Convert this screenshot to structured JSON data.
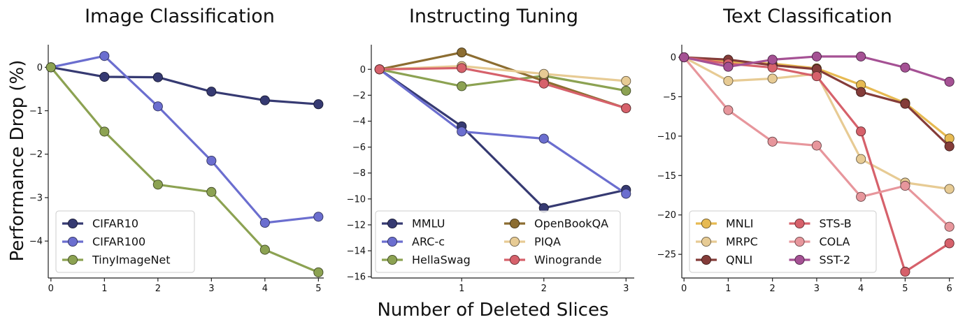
{
  "figure": {
    "ylabel": "Performance Drop (%)",
    "xlabel": "Number of Deleted Slices"
  },
  "chart_data": [
    {
      "type": "line",
      "title": "Image Classification",
      "x": [
        0,
        1,
        2,
        3,
        4,
        5
      ],
      "xticks": [
        "0",
        "1",
        "2",
        "3",
        "4",
        "5"
      ],
      "yticks": [
        "0",
        "−1",
        "−2",
        "−3",
        "−4"
      ],
      "ytick_values": [
        0,
        -1,
        -2,
        -3,
        -4
      ],
      "xlim": [
        -0.05,
        5.1
      ],
      "ylim": [
        -4.85,
        0.52
      ],
      "legend_position": "lower-left",
      "legend_columns": 1,
      "series": [
        {
          "name": "CIFAR10",
          "color": "#363a72",
          "x": [
            0,
            1,
            2,
            3,
            4,
            5
          ],
          "values": [
            0,
            -0.22,
            -0.23,
            -0.56,
            -0.76,
            -0.85
          ]
        },
        {
          "name": "CIFAR100",
          "color": "#6b6ecf",
          "x": [
            0,
            1,
            2,
            3,
            4,
            5
          ],
          "values": [
            0,
            0.26,
            -0.9,
            -2.15,
            -3.58,
            -3.44
          ]
        },
        {
          "name": "TinyImageNet",
          "color": "#8ca252",
          "x": [
            0,
            1,
            2,
            3,
            4,
            5
          ],
          "values": [
            0,
            -1.48,
            -2.7,
            -2.87,
            -4.2,
            -4.72
          ]
        }
      ]
    },
    {
      "type": "line",
      "title": "Instructing Tuning",
      "x": [
        0,
        1,
        2,
        3
      ],
      "xticks": [
        "1",
        "2",
        "3"
      ],
      "xtick_values": [
        1,
        2,
        3
      ],
      "yticks": [
        "0",
        "−2",
        "−4",
        "−6",
        "−8",
        "−10",
        "−12",
        "−14",
        "−16"
      ],
      "ytick_values": [
        0,
        -2,
        -4,
        -6,
        -8,
        -10,
        -12,
        -14,
        -16
      ],
      "xlim": [
        -0.1,
        3.1
      ],
      "ylim": [
        -16.1,
        1.9
      ],
      "legend_position": "lower-center",
      "legend_columns": 2,
      "series": [
        {
          "name": "MMLU",
          "color": "#363a72",
          "x": [
            0,
            1,
            2,
            3
          ],
          "values": [
            0,
            -4.4,
            -10.7,
            -9.3
          ]
        },
        {
          "name": "ARC-c",
          "color": "#6b6ecf",
          "x": [
            0,
            1,
            2,
            3
          ],
          "values": [
            0,
            -4.8,
            -5.35,
            -9.6
          ]
        },
        {
          "name": "HellaSwag",
          "color": "#8ca252",
          "x": [
            0,
            1,
            2,
            3
          ],
          "values": [
            0,
            -1.3,
            -0.5,
            -1.65
          ]
        },
        {
          "name": "OpenBookQA",
          "color": "#8c6d31",
          "x": [
            0,
            1,
            2,
            3
          ],
          "values": [
            0,
            1.3,
            -0.9,
            -3.0
          ]
        },
        {
          "name": "PIQA",
          "color": "#e7cb94",
          "x": [
            0,
            1,
            2,
            3
          ],
          "values": [
            0,
            0.25,
            -0.35,
            -0.9
          ]
        },
        {
          "name": "Winogrande",
          "color": "#d6616b",
          "x": [
            0,
            1,
            2,
            3
          ],
          "values": [
            0,
            0.1,
            -1.1,
            -3.0
          ]
        }
      ]
    },
    {
      "type": "line",
      "title": "Text Classification",
      "x": [
        0,
        1,
        2,
        3,
        4,
        5,
        6
      ],
      "xticks": [
        "0",
        "1",
        "2",
        "3",
        "4",
        "5",
        "6"
      ],
      "yticks": [
        "0",
        "−5",
        "−10",
        "−15",
        "−20",
        "−25"
      ],
      "ytick_values": [
        0,
        -5,
        -10,
        -15,
        -20,
        -25
      ],
      "xlim": [
        -0.05,
        6.1
      ],
      "ylim": [
        -28.0,
        1.6
      ],
      "legend_position": "lower-center",
      "legend_columns": 2,
      "series": [
        {
          "name": "MNLI",
          "color": "#e7ba52",
          "x": [
            0,
            1,
            2,
            3,
            4,
            5,
            6
          ],
          "values": [
            0,
            -0.6,
            -0.8,
            -1.4,
            -3.5,
            -5.8,
            -10.3
          ]
        },
        {
          "name": "MRPC",
          "color": "#e7cb94",
          "x": [
            0,
            1,
            2,
            3,
            4,
            5,
            6
          ],
          "values": [
            0,
            -3.0,
            -2.7,
            -2.1,
            -12.9,
            -15.9,
            -16.7
          ]
        },
        {
          "name": "QNLI",
          "color": "#843c39",
          "x": [
            0,
            1,
            2,
            3,
            4,
            5,
            6
          ],
          "values": [
            0,
            -0.3,
            -1.0,
            -1.5,
            -4.4,
            -5.9,
            -11.3
          ]
        },
        {
          "name": "STS-B",
          "color": "#d6616b",
          "x": [
            0,
            1,
            2,
            3,
            4,
            5,
            6
          ],
          "values": [
            0,
            -0.8,
            -1.3,
            -2.4,
            -9.4,
            -27.2,
            -23.6
          ]
        },
        {
          "name": "COLA",
          "color": "#e7969c",
          "x": [
            0,
            1,
            2,
            3,
            4,
            5,
            6
          ],
          "values": [
            0,
            -6.7,
            -10.7,
            -11.2,
            -17.7,
            -16.3,
            -21.5
          ]
        },
        {
          "name": "SST-2",
          "color": "#a55194",
          "x": [
            0,
            1,
            2,
            3,
            4,
            5,
            6
          ],
          "values": [
            0,
            -1.2,
            -0.3,
            0.1,
            0.1,
            -1.3,
            -3.1
          ]
        }
      ]
    }
  ]
}
